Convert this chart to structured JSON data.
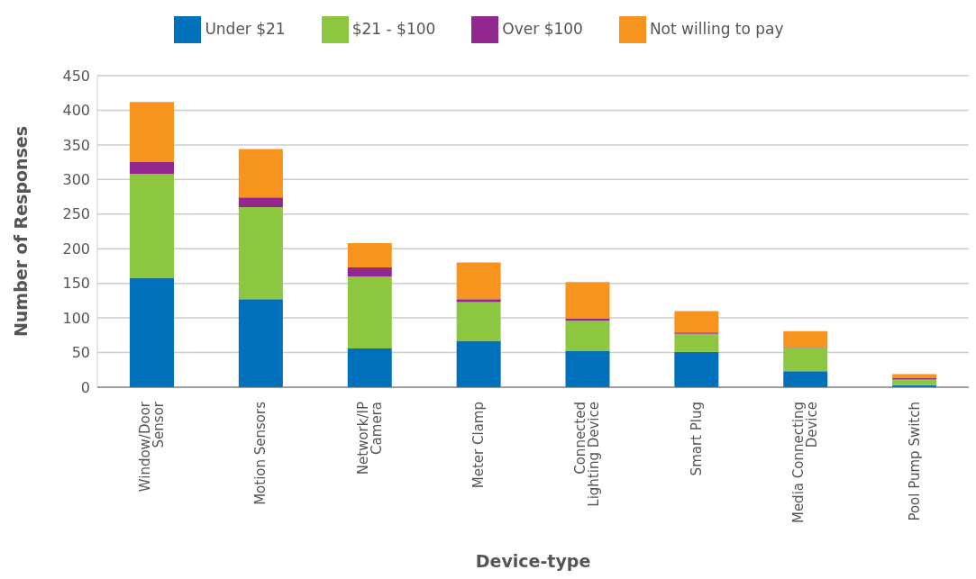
{
  "chart_data": {
    "type": "bar",
    "stacked": true,
    "xlabel": "Device-type",
    "ylabel": "Number of Responses",
    "categories": [
      "Window/Door Sensor",
      "Motion Sensors",
      "Network/IP Camera",
      "Meter Clamp",
      "Connected Lighting Device",
      "Smart Plug",
      "Media Connecting Device",
      "Pool Pump Switch"
    ],
    "series": [
      {
        "name": "Under $21",
        "color": "#0070bb",
        "values": [
          158,
          127,
          56,
          67,
          52,
          51,
          23,
          3
        ]
      },
      {
        "name": "$21 - $100",
        "color": "#8dc63f",
        "values": [
          150,
          133,
          104,
          56,
          44,
          26,
          34,
          8
        ]
      },
      {
        "name": "Over $100",
        "color": "#92278f",
        "values": [
          17,
          14,
          13,
          4,
          3,
          2,
          1,
          2
        ]
      },
      {
        "name": "Not willing to pay",
        "color": "#f7941d",
        "values": [
          87,
          70,
          35,
          53,
          53,
          31,
          23,
          6
        ]
      }
    ],
    "ylim": [
      0,
      450
    ],
    "yticks": [
      0,
      50,
      100,
      150,
      200,
      250,
      300,
      350,
      400,
      450
    ],
    "grid": "y",
    "legend": "top"
  }
}
